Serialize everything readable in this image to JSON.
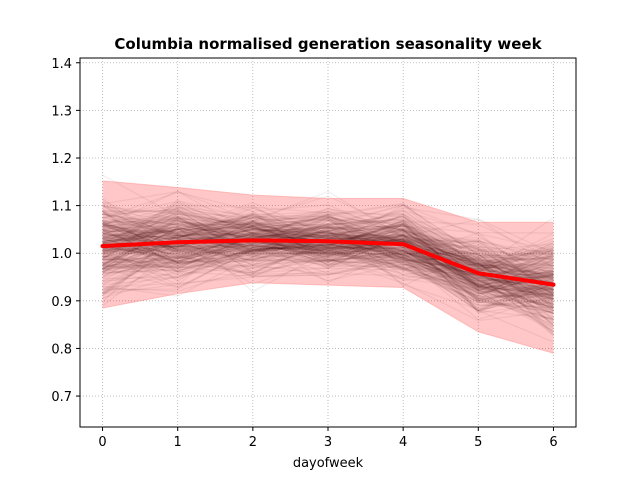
{
  "chart_data": {
    "type": "line",
    "title": "Columbia normalised generation seasonality week",
    "xlabel": "dayofweek",
    "ylabel": "",
    "x": [
      0,
      1,
      2,
      3,
      4,
      5,
      6
    ],
    "xlim": [
      -0.3,
      6.3
    ],
    "ylim": [
      0.635,
      1.41
    ],
    "xticks": [
      "0",
      "1",
      "2",
      "3",
      "4",
      "5",
      "6"
    ],
    "yticks": [
      "0.7",
      "0.8",
      "0.9",
      "1.0",
      "1.1",
      "1.2",
      "1.3",
      "1.4"
    ],
    "grid": true,
    "series": [
      {
        "role": "mean",
        "values": [
          1.015,
          1.023,
          1.027,
          1.025,
          1.019,
          0.958,
          0.934
        ],
        "color": "#ff0000"
      },
      {
        "role": "band_upper",
        "values": [
          1.152,
          1.138,
          1.122,
          1.115,
          1.115,
          1.065,
          1.065
        ],
        "color": "#ff9999"
      },
      {
        "role": "band_lower",
        "values": [
          0.885,
          0.915,
          0.938,
          0.933,
          0.928,
          0.835,
          0.79
        ],
        "color": "#ff9999"
      },
      {
        "role": "background_weekly_traces",
        "count_approx": 300,
        "color": "#000000"
      }
    ]
  }
}
